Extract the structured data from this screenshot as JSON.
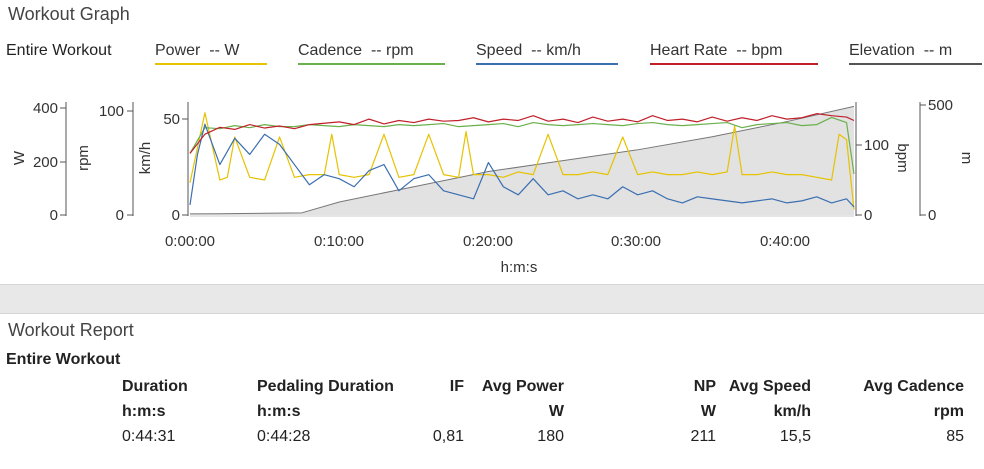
{
  "graph": {
    "title": "Workout Graph",
    "scope": "Entire Workout",
    "legend": [
      {
        "label": "Power  -- W",
        "color": "#e6c200"
      },
      {
        "label": "Cadence  -- rpm",
        "color": "#6ab04c"
      },
      {
        "label": "Speed  -- km/h",
        "color": "#3b6fb0"
      },
      {
        "label": "Heart Rate  -- bpm",
        "color": "#c0202a"
      },
      {
        "label": "Elevation  -- m",
        "color": "#555555"
      }
    ],
    "axes": {
      "power": {
        "unit": "W",
        "ticks": [
          "400",
          "200",
          "0"
        ]
      },
      "cadence": {
        "unit": "rpm",
        "ticks": [
          "100",
          "0"
        ]
      },
      "speed": {
        "unit": "km/h",
        "ticks": [
          "50",
          "0"
        ]
      },
      "heart_rate": {
        "unit": "bpm",
        "ticks": [
          "100",
          "0"
        ]
      },
      "elevation": {
        "unit": "m",
        "ticks": [
          "500",
          "0"
        ]
      }
    },
    "x_ticks": [
      "0:00:00",
      "0:10:00",
      "0:20:00",
      "0:30:00",
      "0:40:00"
    ],
    "x_label": "h:m:s"
  },
  "chart_data": {
    "type": "line",
    "x_label": "h:m:s",
    "x_range_min": [
      0,
      44.5
    ],
    "x_ticks": [
      "0:00:00",
      "0:10:00",
      "0:20:00",
      "0:30:00",
      "0:40:00"
    ],
    "series": [
      {
        "name": "Power",
        "unit": "W",
        "axis_range": [
          0,
          420
        ],
        "color": "#e6c200",
        "x": [
          0,
          1,
          2,
          2.5,
          3,
          4,
          5,
          6,
          7,
          8,
          9,
          9.5,
          10,
          11,
          12,
          13,
          14,
          15,
          16,
          17,
          18,
          18.5,
          19,
          20,
          21,
          22,
          23,
          24,
          25,
          26,
          27,
          28,
          29,
          30,
          31,
          32,
          33,
          34,
          35,
          36,
          36.5,
          37,
          38,
          39,
          40,
          41,
          42,
          43,
          43.5,
          44,
          44.5
        ],
        "values": [
          120,
          380,
          130,
          140,
          290,
          140,
          130,
          290,
          140,
          150,
          150,
          300,
          150,
          140,
          150,
          300,
          140,
          150,
          300,
          150,
          140,
          310,
          150,
          150,
          140,
          160,
          150,
          300,
          150,
          150,
          160,
          150,
          290,
          150,
          160,
          150,
          150,
          160,
          150,
          160,
          330,
          150,
          150,
          160,
          150,
          150,
          140,
          130,
          300,
          280,
          20
        ]
      },
      {
        "name": "Cadence",
        "unit": "rpm",
        "axis_range": [
          0,
          110
        ],
        "color": "#6ab04c",
        "x": [
          0,
          1,
          2,
          3,
          4,
          5,
          6,
          7,
          8,
          9,
          10,
          11,
          12,
          13,
          14,
          15,
          16,
          17,
          18,
          19,
          20,
          21,
          22,
          23,
          24,
          25,
          26,
          27,
          28,
          29,
          30,
          31,
          32,
          33,
          34,
          35,
          36,
          37,
          38,
          39,
          40,
          41,
          42,
          43,
          44,
          44.5
        ],
        "values": [
          60,
          85,
          84,
          87,
          85,
          88,
          86,
          86,
          88,
          87,
          86,
          88,
          87,
          86,
          88,
          87,
          88,
          89,
          86,
          87,
          88,
          89,
          86,
          90,
          88,
          87,
          88,
          89,
          88,
          87,
          89,
          90,
          88,
          87,
          88,
          89,
          90,
          85,
          88,
          89,
          90,
          87,
          88,
          95,
          90,
          40
        ]
      },
      {
        "name": "Speed",
        "unit": "km/h",
        "axis_range": [
          0,
          56
        ],
        "color": "#3b6fb0",
        "x": [
          0,
          0.5,
          1,
          2,
          3,
          4,
          5,
          6,
          7,
          8,
          9,
          10,
          11,
          12,
          13,
          14,
          15,
          16,
          17,
          18,
          19,
          20,
          21,
          22,
          23,
          24,
          25,
          26,
          27,
          28,
          29,
          30,
          31,
          32,
          33,
          34,
          35,
          36,
          37,
          38,
          39,
          40,
          41,
          42,
          43,
          44,
          44.5
        ],
        "values": [
          5,
          30,
          45,
          25,
          38,
          30,
          40,
          35,
          25,
          15,
          20,
          18,
          14,
          22,
          25,
          12,
          18,
          20,
          12,
          10,
          8,
          26,
          14,
          10,
          18,
          10,
          12,
          8,
          10,
          8,
          14,
          10,
          12,
          8,
          6,
          9,
          8,
          7,
          6,
          7,
          8,
          6,
          7,
          9,
          6,
          8,
          4
        ]
      },
      {
        "name": "Heart Rate",
        "unit": "bpm",
        "axis_range": [
          0,
          165
        ],
        "color": "#c0202a",
        "x": [
          0,
          1,
          2,
          3,
          4,
          5,
          6,
          7,
          8,
          9,
          10,
          11,
          12,
          13,
          14,
          15,
          16,
          17,
          18,
          19,
          20,
          21,
          22,
          23,
          24,
          25,
          26,
          27,
          28,
          29,
          30,
          31,
          32,
          33,
          34,
          35,
          36,
          37,
          38,
          39,
          40,
          41,
          42,
          43,
          44,
          44.5
        ],
        "values": [
          90,
          118,
          128,
          125,
          132,
          127,
          130,
          126,
          132,
          134,
          136,
          132,
          140,
          133,
          138,
          135,
          140,
          137,
          138,
          142,
          136,
          140,
          138,
          145,
          137,
          140,
          135,
          143,
          137,
          140,
          136,
          145,
          138,
          140,
          136,
          143,
          137,
          142,
          138,
          145,
          140,
          142,
          148,
          145,
          143,
          138
        ]
      },
      {
        "name": "Elevation",
        "unit": "m",
        "axis_range": [
          0,
          520
        ],
        "color": "#777777",
        "x": [
          0,
          2,
          5,
          7.5,
          10,
          15,
          20,
          25,
          30,
          35,
          40,
          44.5
        ],
        "values": [
          5,
          6,
          8,
          10,
          60,
          130,
          200,
          250,
          300,
          360,
          430,
          500
        ]
      }
    ]
  },
  "report": {
    "title": "Workout Report",
    "scope": "Entire Workout",
    "columns": [
      {
        "header": "Duration",
        "unit": "h:m:s",
        "value": "0:44:31"
      },
      {
        "header": "Pedaling Duration",
        "unit": "h:m:s",
        "value": "0:44:28"
      },
      {
        "header": "IF",
        "unit": "",
        "value": "0,81"
      },
      {
        "header": "Avg Power",
        "unit": "W",
        "value": "180"
      },
      {
        "header": "NP",
        "unit": "W",
        "value": "211"
      },
      {
        "header": "Avg Speed",
        "unit": "km/h",
        "value": "15,5"
      },
      {
        "header": "Avg Cadence",
        "unit": "rpm",
        "value": "85"
      }
    ]
  }
}
